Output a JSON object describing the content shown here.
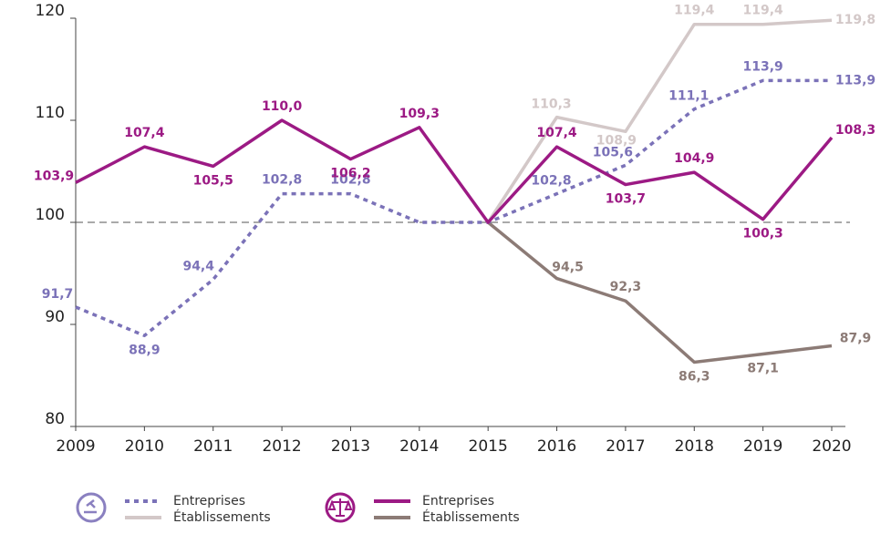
{
  "chart_data": {
    "type": "line",
    "categories": [
      "2009",
      "2010",
      "2011",
      "2012",
      "2013",
      "2014",
      "2015",
      "2016",
      "2017",
      "2018",
      "2019",
      "2020"
    ],
    "ylim": [
      80,
      120
    ],
    "yticks": [
      80,
      90,
      100,
      110,
      120
    ],
    "reference_line": 100,
    "series": [
      {
        "name": "Entreprises",
        "color": "#7b72b8",
        "style": "dashed",
        "values": [
          91.7,
          88.9,
          94.4,
          102.8,
          102.8,
          100,
          100,
          102.8,
          105.6,
          111.1,
          113.9,
          113.9
        ],
        "value_labels": [
          "91,7",
          "88,9",
          "94,4",
          "102,8",
          "102,8",
          null,
          null,
          "102,8",
          "105,6",
          "111,1",
          "113,9",
          "113,9"
        ]
      },
      {
        "name": "Établissements",
        "color": "#d3c8c8",
        "style": "solid",
        "values": [
          null,
          null,
          null,
          null,
          null,
          null,
          100,
          110.3,
          108.9,
          119.4,
          119.4,
          119.8
        ],
        "value_labels": [
          null,
          null,
          null,
          null,
          null,
          null,
          null,
          "110,3",
          "108,9",
          "119,4",
          "119,4",
          "119,8"
        ]
      },
      {
        "name": "Entreprises",
        "color": "#9c1a84",
        "style": "solid",
        "values": [
          103.9,
          107.4,
          105.5,
          110.0,
          106.2,
          109.3,
          100,
          107.4,
          103.7,
          104.9,
          100.3,
          108.3
        ],
        "value_labels": [
          "103,9",
          "107,4",
          "105,5",
          "110,0",
          "106,2",
          "109,3",
          null,
          "107,4",
          "103,7",
          "104,9",
          "100,3",
          "108,3"
        ]
      },
      {
        "name": "Établissements",
        "color": "#8c7b76",
        "style": "solid",
        "values": [
          null,
          null,
          null,
          null,
          null,
          null,
          100,
          94.5,
          92.3,
          86.3,
          87.1,
          87.9
        ],
        "value_labels": [
          null,
          null,
          null,
          null,
          null,
          null,
          null,
          "94,5",
          "92,3",
          "86,3",
          "87,1",
          "87,9"
        ]
      }
    ]
  }
}
